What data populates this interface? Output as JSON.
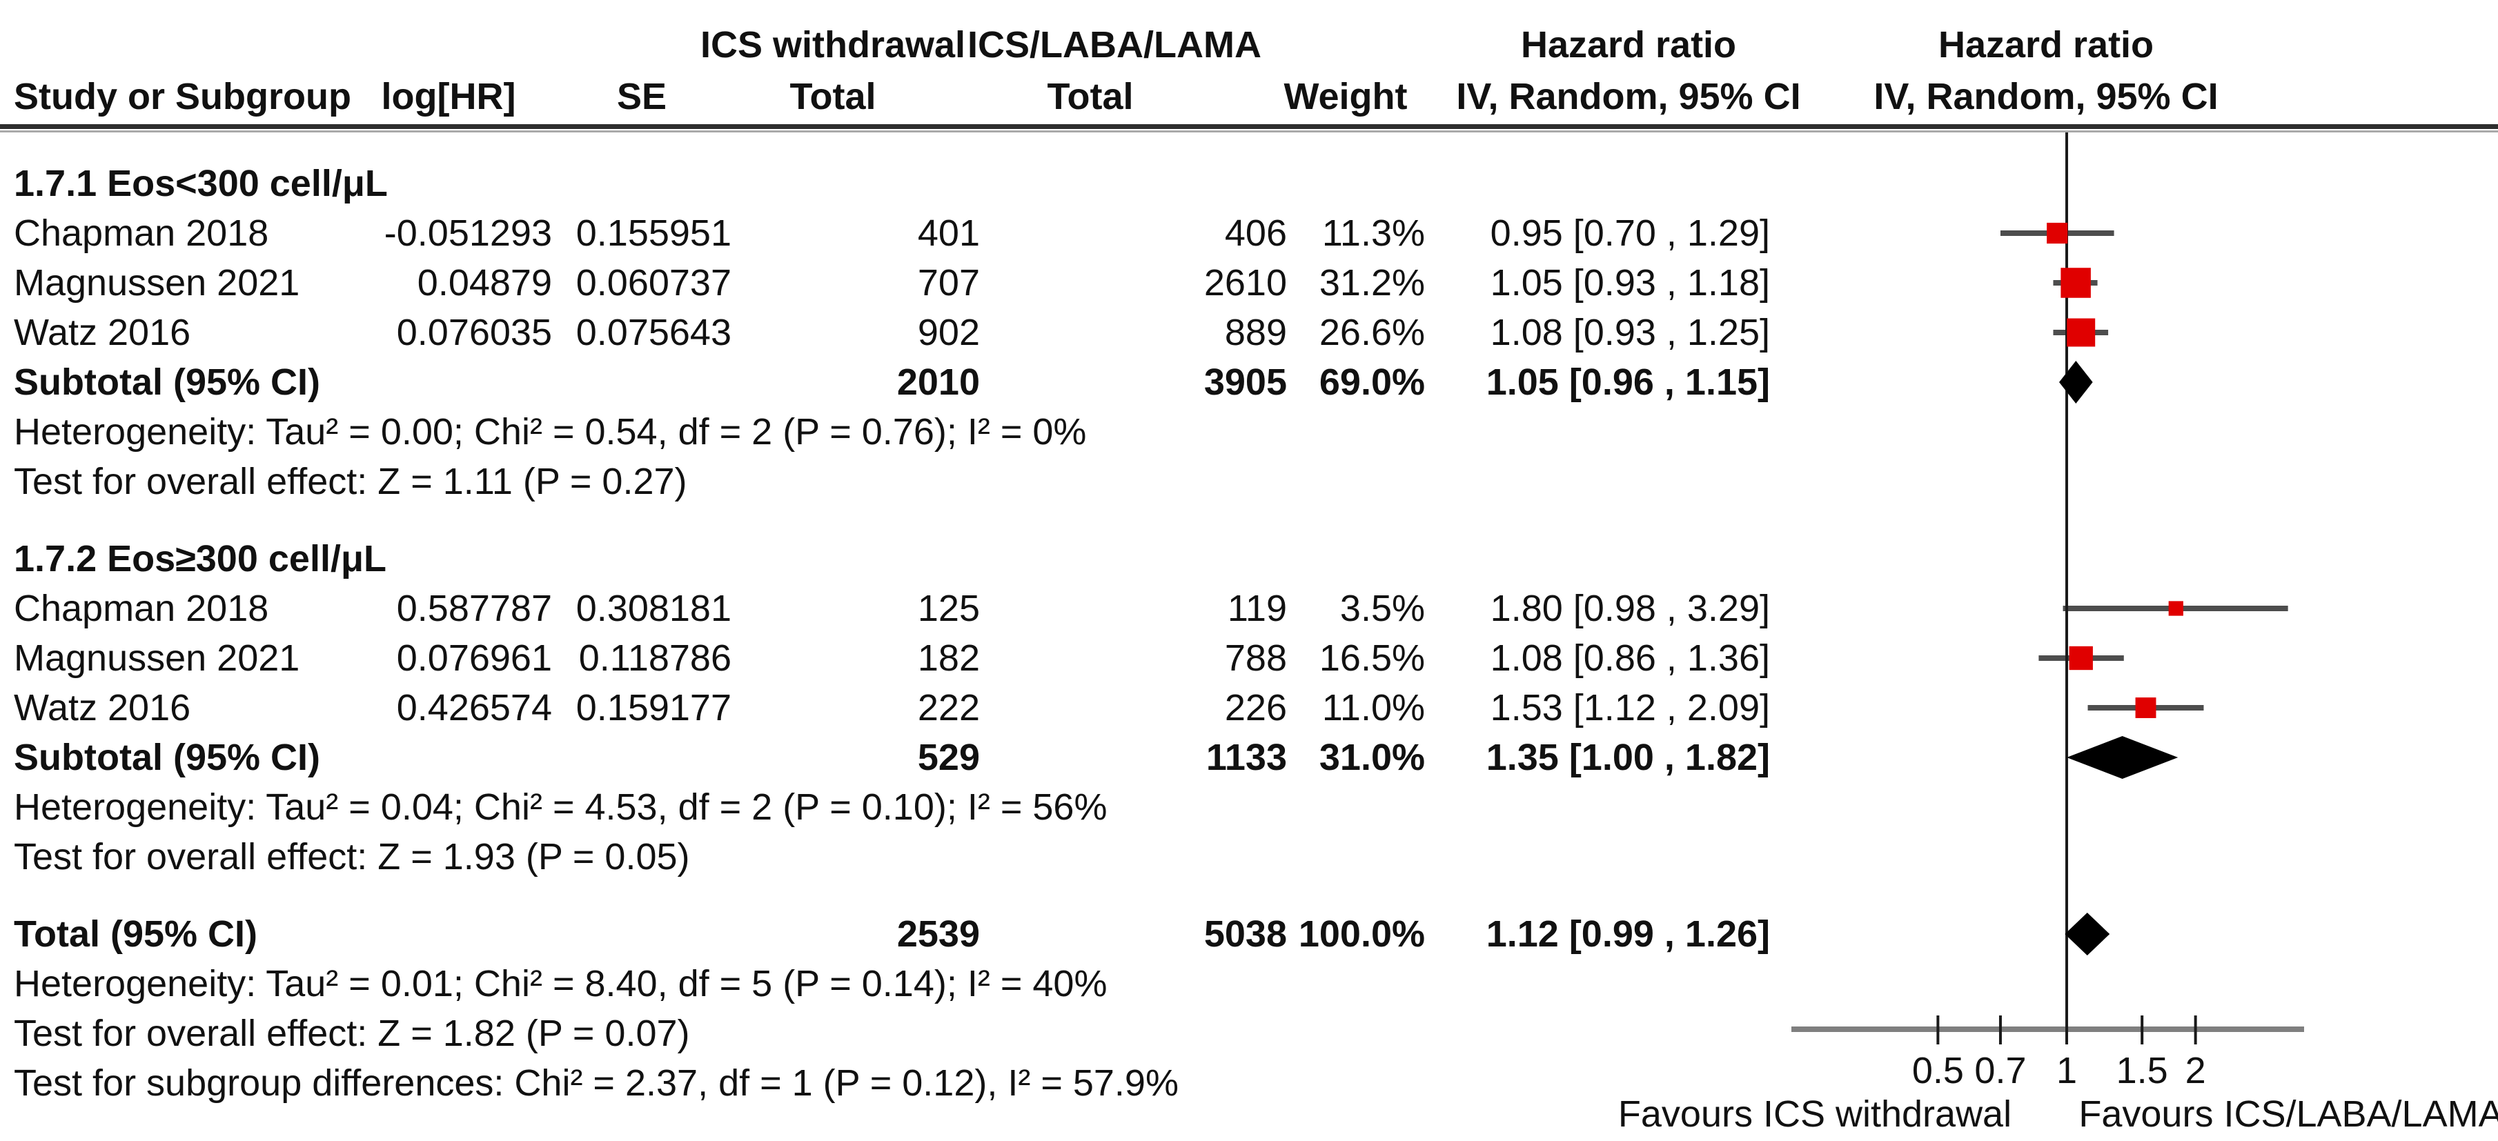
{
  "header": {
    "col_study": "Study or Subgroup",
    "col_loghr": "log[HR]",
    "col_se": "SE",
    "group1_name": "ICS withdrawal",
    "group1_sub": "Total",
    "group2_name": "ICS/LABA/LAMA",
    "group2_sub": "Total",
    "col_weight": "Weight",
    "hr_text_title": "Hazard ratio",
    "hr_text_sub": "IV, Random, 95% CI",
    "hr_plot_title": "Hazard ratio",
    "hr_plot_sub": "IV, Random, 95% CI"
  },
  "chart_data": {
    "type": "forest",
    "x_scale": "log",
    "axis_ticks": [
      "0.5",
      "0.7",
      "1",
      "1.5",
      "2"
    ],
    "axis_range": [
      0.23,
      3.6
    ],
    "favours_left": "Favours ICS withdrawal",
    "favours_right": "Favours ICS/LABA/LAMA",
    "colors": {
      "marker": "#e00000",
      "ci_line": "#4d4d4d",
      "diamond": "#000000",
      "axis": "#7f7f7f",
      "center_line": "#1a1a1a"
    },
    "subgroups": [
      {
        "title": "1.7.1 Eos<300 cell/μL",
        "studies": [
          {
            "study": "Chapman 2018",
            "log_hr": "-0.051293",
            "se": "0.155951",
            "total_1": "401",
            "total_2": "406",
            "weight": "11.3%",
            "weight_value": 11.3,
            "ci_label": "0.95 [0.70 , 1.29]",
            "hr": 0.95,
            "ci_low": 0.7,
            "ci_high": 1.29
          },
          {
            "study": "Magnussen 2021",
            "log_hr": "0.04879",
            "se": "0.060737",
            "total_1": "707",
            "total_2": "2610",
            "weight": "31.2%",
            "weight_value": 31.2,
            "ci_label": "1.05 [0.93 , 1.18]",
            "hr": 1.05,
            "ci_low": 0.93,
            "ci_high": 1.18
          },
          {
            "study": "Watz 2016",
            "log_hr": "0.076035",
            "se": "0.075643",
            "total_1": "902",
            "total_2": "889",
            "weight": "26.6%",
            "weight_value": 26.6,
            "ci_label": "1.08 [0.93 , 1.25]",
            "hr": 1.08,
            "ci_low": 0.93,
            "ci_high": 1.25
          }
        ],
        "subtotal": {
          "label": "Subtotal (95% CI)",
          "total_1": "2010",
          "total_2": "3905",
          "weight": "69.0%",
          "ci_label": "1.05 [0.96 , 1.15]",
          "hr": 1.05,
          "ci_low": 0.96,
          "ci_high": 1.15
        },
        "heterogeneity": "Heterogeneity: Tau² = 0.00; Chi² = 0.54, df = 2 (P = 0.76); I² = 0%",
        "overall_effect": "Test for overall effect: Z = 1.11 (P = 0.27)"
      },
      {
        "title": "1.7.2 Eos≥300 cell/μL",
        "studies": [
          {
            "study": "Chapman 2018",
            "log_hr": "0.587787",
            "se": "0.308181",
            "total_1": "125",
            "total_2": "119",
            "weight": "3.5%",
            "weight_value": 3.5,
            "ci_label": "1.80 [0.98 , 3.29]",
            "hr": 1.8,
            "ci_low": 0.98,
            "ci_high": 3.29
          },
          {
            "study": "Magnussen 2021",
            "log_hr": "0.076961",
            "se": "0.118786",
            "total_1": "182",
            "total_2": "788",
            "weight": "16.5%",
            "weight_value": 16.5,
            "ci_label": "1.08 [0.86 , 1.36]",
            "hr": 1.08,
            "ci_low": 0.86,
            "ci_high": 1.36
          },
          {
            "study": "Watz 2016",
            "log_hr": "0.426574",
            "se": "0.159177",
            "total_1": "222",
            "total_2": "226",
            "weight": "11.0%",
            "weight_value": 11.0,
            "ci_label": "1.53 [1.12 , 2.09]",
            "hr": 1.53,
            "ci_low": 1.12,
            "ci_high": 2.09
          }
        ],
        "subtotal": {
          "label": "Subtotal (95% CI)",
          "total_1": "529",
          "total_2": "1133",
          "weight": "31.0%",
          "ci_label": "1.35 [1.00 , 1.82]",
          "hr": 1.35,
          "ci_low": 1.0,
          "ci_high": 1.82
        },
        "heterogeneity": "Heterogeneity: Tau² = 0.04; Chi² = 4.53, df = 2 (P = 0.10); I² = 56%",
        "overall_effect": "Test for overall effect: Z = 1.93 (P = 0.05)"
      }
    ],
    "total": {
      "label": "Total (95% CI)",
      "total_1": "2539",
      "total_2": "5038",
      "weight": "100.0%",
      "ci_label": "1.12 [0.99 , 1.26]",
      "hr": 1.12,
      "ci_low": 0.99,
      "ci_high": 1.26
    },
    "total_heterogeneity": "Heterogeneity: Tau² = 0.01; Chi² = 8.40, df = 5 (P = 0.14); I² = 40%",
    "total_overall_effect": "Test for overall effect: Z = 1.82 (P = 0.07)",
    "subgroup_differences": "Test for subgroup differences: Chi² = 2.37, df = 1 (P = 0.12), I² = 57.9%"
  }
}
